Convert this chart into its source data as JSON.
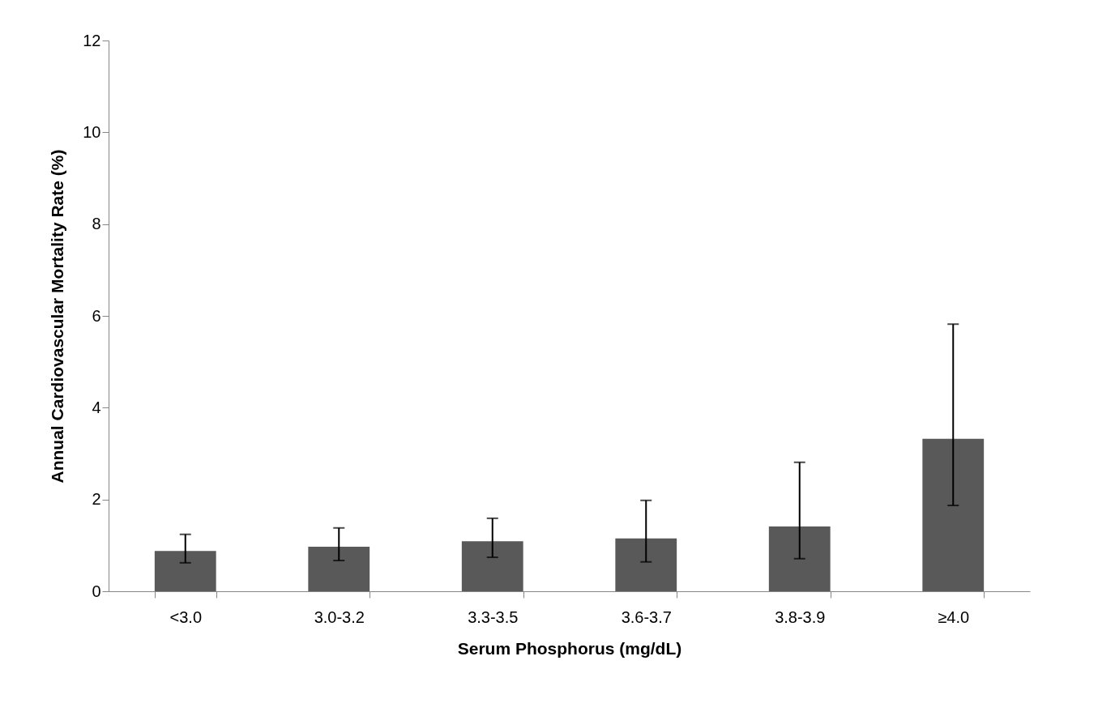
{
  "chart_data": {
    "type": "bar",
    "xlabel": "Serum Phosphorus (mg/dL)",
    "ylabel": "Annual Cardiovascular Mortality  Rate (%)",
    "categories": [
      "<3.0",
      "3.0-3.2",
      "3.3-3.5",
      "3.6-3.7",
      "3.8-3.9",
      "≥4.0"
    ],
    "values": [
      0.88,
      0.97,
      1.09,
      1.15,
      1.41,
      3.32
    ],
    "errors": [
      [
        0.62,
        1.24
      ],
      [
        0.67,
        1.38
      ],
      [
        0.74,
        1.59
      ],
      [
        0.64,
        1.98
      ],
      [
        0.71,
        2.81
      ],
      [
        1.87,
        5.82
      ]
    ],
    "color": "#595959",
    "ylim": [
      0,
      12
    ],
    "yticks": [
      0,
      2,
      4,
      6,
      8,
      10,
      12
    ],
    "grid": false
  }
}
